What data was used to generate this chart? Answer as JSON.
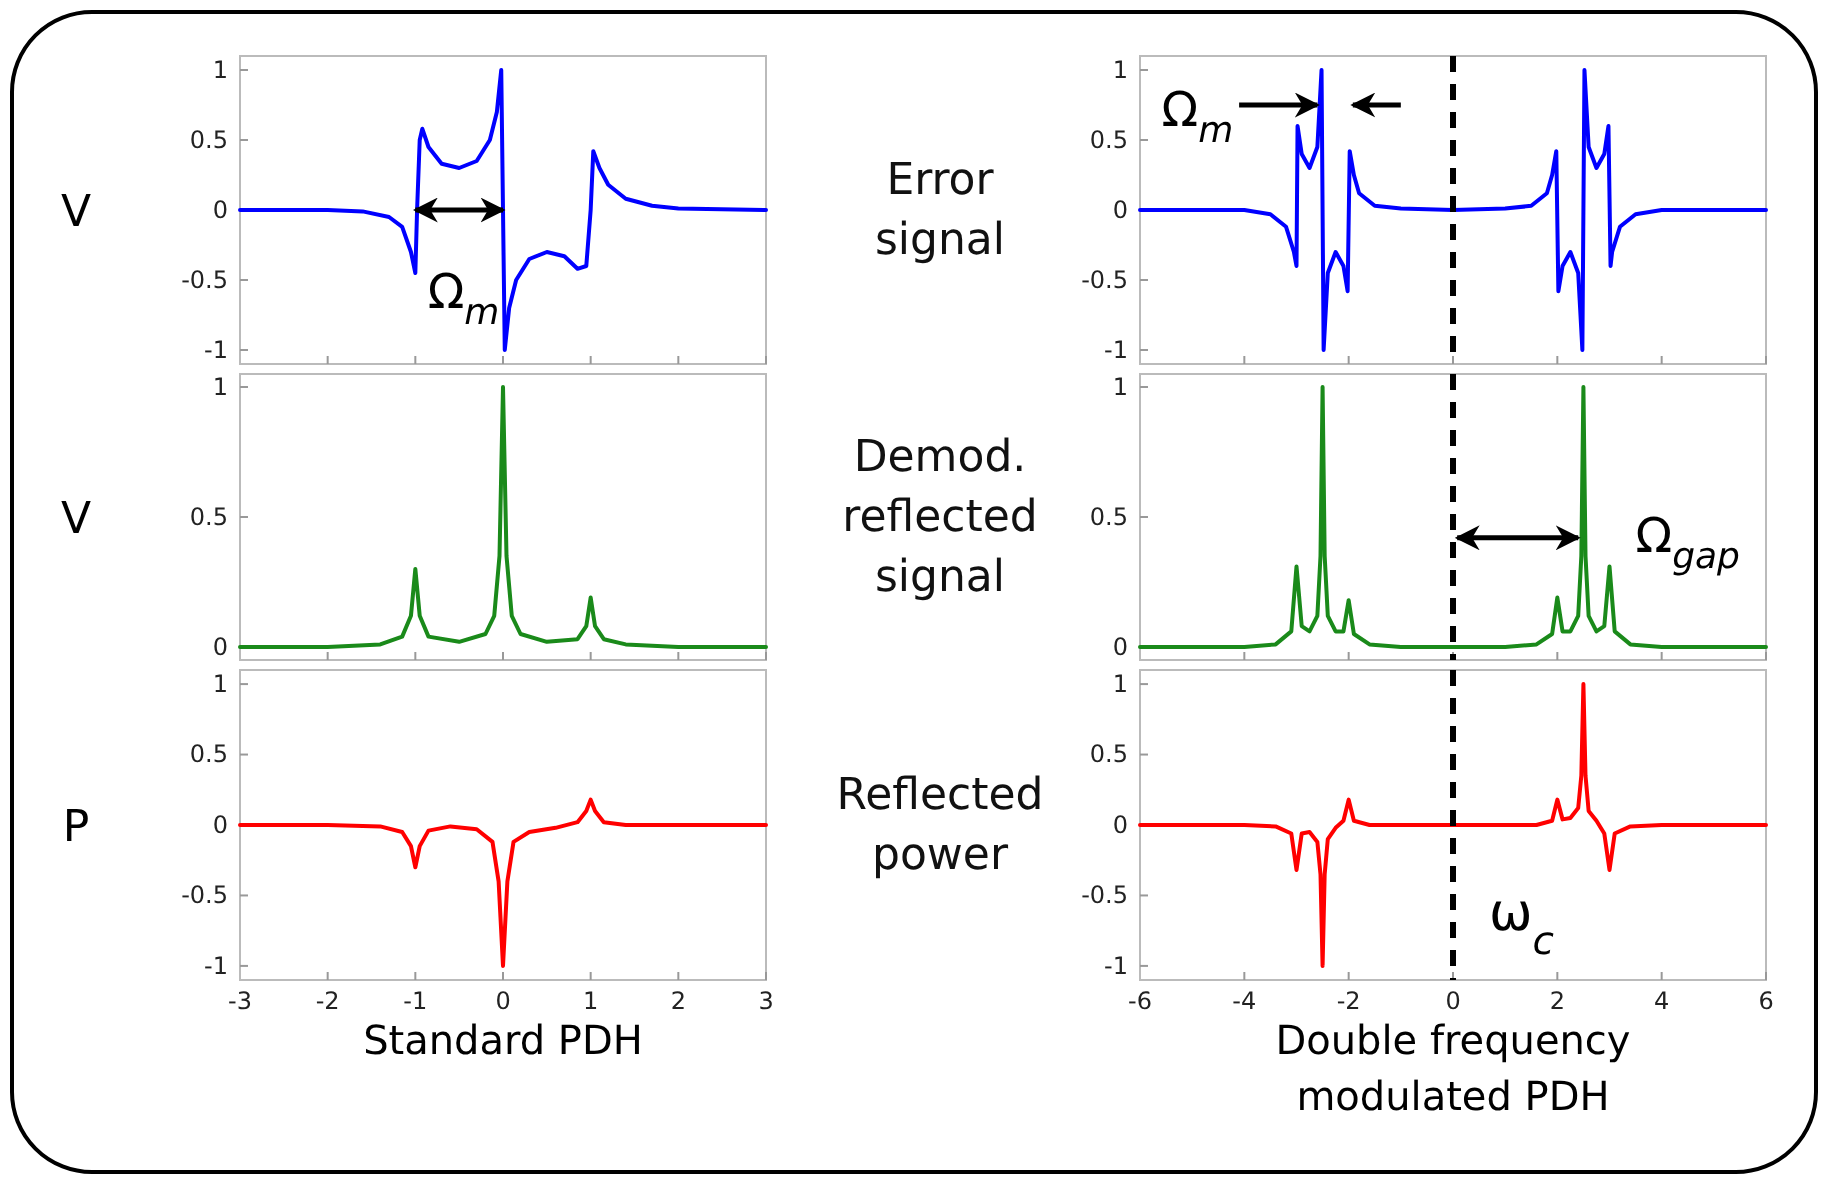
{
  "chart_data": [
    {
      "type": "line",
      "ylabel": "V",
      "annotations": [
        "Error signal",
        "Ω$_{m}$"
      ],
      "xlim": [
        -3,
        3
      ],
      "xticks": [
        -3,
        -2,
        -1,
        0,
        1,
        2,
        3
      ],
      "ylim": [
        -1.1,
        1.1
      ],
      "yticks": [
        -1,
        -0.5,
        0,
        0.5,
        1
      ],
      "tick_labels": "y",
      "series": [
        {
          "color": "#0000ff",
          "x": [
            -3,
            -2,
            -1.6,
            -1.3,
            -1.15,
            -1.05,
            -1.0,
            -0.98,
            -0.95,
            -0.92,
            -0.85,
            -0.7,
            -0.5,
            -0.3,
            -0.15,
            -0.07,
            -0.02,
            0,
            0.02,
            0.07,
            0.15,
            0.3,
            0.5,
            0.7,
            0.85,
            0.95,
            1.0,
            1.03,
            1.1,
            1.2,
            1.4,
            1.7,
            2,
            3
          ],
          "values": [
            0,
            0,
            -0.01,
            -0.05,
            -0.12,
            -0.3,
            -0.45,
            0,
            0.5,
            0.58,
            0.45,
            0.33,
            0.3,
            0.35,
            0.5,
            0.7,
            1.0,
            0,
            -1.0,
            -0.7,
            -0.5,
            -0.35,
            -0.3,
            -0.33,
            -0.42,
            -0.4,
            0,
            0.42,
            0.3,
            0.18,
            0.08,
            0.03,
            0.01,
            0
          ]
        }
      ]
    },
    {
      "type": "line",
      "annotations": [
        "Ω$_{m}$"
      ],
      "xlim": [
        -6,
        6
      ],
      "xticks": [
        -6,
        -4,
        -2,
        0,
        2,
        4,
        6
      ],
      "ylim": [
        -1.1,
        1.1
      ],
      "yticks": [
        -1,
        -0.5,
        0,
        0.5,
        1
      ],
      "tick_labels": "y",
      "ref_lines": [
        {
          "axis": "x",
          "value": 0,
          "color": "#000000",
          "line_style": "dashed"
        }
      ],
      "series": [
        {
          "color": "#0000ff",
          "x": [
            -6,
            -4,
            -3.5,
            -3.2,
            -3.05,
            -3.0,
            -2.98,
            -2.9,
            -2.75,
            -2.6,
            -2.52,
            -2.48,
            -2.4,
            -2.25,
            -2.1,
            -2.02,
            -1.98,
            -1.9,
            -1.8,
            -1.5,
            -1,
            0,
            1,
            1.5,
            1.8,
            1.9,
            1.98,
            2.02,
            2.1,
            2.25,
            2.4,
            2.48,
            2.52,
            2.6,
            2.75,
            2.9,
            2.98,
            3.02,
            3.05,
            3.2,
            3.5,
            4,
            6
          ],
          "values": [
            0,
            0,
            -0.03,
            -0.12,
            -0.3,
            -0.4,
            0.6,
            0.4,
            0.3,
            0.45,
            1.0,
            -1.0,
            -0.45,
            -0.3,
            -0.4,
            -0.58,
            0.42,
            0.25,
            0.12,
            0.03,
            0.01,
            0,
            0.01,
            0.03,
            0.12,
            0.25,
            0.42,
            -0.58,
            -0.4,
            -0.3,
            -0.45,
            -1.0,
            1.0,
            0.45,
            0.3,
            0.4,
            0.6,
            -0.4,
            -0.3,
            -0.12,
            -0.03,
            0,
            0
          ]
        }
      ]
    },
    {
      "type": "line",
      "ylabel": "V",
      "annotations": [
        "Demod. reflected signal"
      ],
      "xlim": [
        -3,
        3
      ],
      "xticks": [
        -3,
        -2,
        -1,
        0,
        1,
        2,
        3
      ],
      "ylim": [
        -0.05,
        1.05
      ],
      "yticks": [
        0,
        0.5,
        1
      ],
      "tick_labels": "y",
      "series": [
        {
          "color": "#1a8a1a",
          "x": [
            -3,
            -2,
            -1.4,
            -1.15,
            -1.05,
            -1,
            -0.95,
            -0.85,
            -0.5,
            -0.2,
            -0.1,
            -0.04,
            0,
            0.04,
            0.1,
            0.2,
            0.5,
            0.85,
            0.95,
            1,
            1.05,
            1.15,
            1.4,
            2,
            3
          ],
          "values": [
            0,
            0,
            0.01,
            0.04,
            0.12,
            0.3,
            0.12,
            0.04,
            0.02,
            0.05,
            0.12,
            0.35,
            1.0,
            0.35,
            0.12,
            0.05,
            0.02,
            0.03,
            0.08,
            0.19,
            0.08,
            0.03,
            0.01,
            0,
            0
          ]
        }
      ]
    },
    {
      "type": "line",
      "annotations": [
        "Ω$_{gap}$"
      ],
      "xlim": [
        -6,
        6
      ],
      "xticks": [
        -6,
        -4,
        -2,
        0,
        2,
        4,
        6
      ],
      "ylim": [
        -0.05,
        1.05
      ],
      "yticks": [
        0,
        0.5,
        1
      ],
      "tick_labels": "y",
      "ref_lines": [
        {
          "axis": "x",
          "value": 0,
          "color": "#000000",
          "line_style": "dashed"
        }
      ],
      "series": [
        {
          "color": "#1a8a1a",
          "x": [
            -6,
            -4,
            -3.4,
            -3.1,
            -3.0,
            -2.9,
            -2.75,
            -2.6,
            -2.54,
            -2.5,
            -2.46,
            -2.4,
            -2.25,
            -2.1,
            -2.0,
            -1.9,
            -1.6,
            -1,
            0,
            1,
            1.6,
            1.9,
            2.0,
            2.1,
            2.25,
            2.4,
            2.46,
            2.5,
            2.54,
            2.6,
            2.75,
            2.9,
            3.0,
            3.1,
            3.4,
            4,
            6
          ],
          "values": [
            0,
            0,
            0.01,
            0.06,
            0.31,
            0.08,
            0.06,
            0.12,
            0.35,
            1.0,
            0.35,
            0.12,
            0.06,
            0.06,
            0.18,
            0.05,
            0.01,
            0,
            0,
            0,
            0.01,
            0.05,
            0.19,
            0.06,
            0.06,
            0.12,
            0.35,
            1.0,
            0.35,
            0.12,
            0.06,
            0.08,
            0.31,
            0.06,
            0.01,
            0,
            0
          ]
        }
      ]
    },
    {
      "type": "line",
      "ylabel": "P",
      "xlabel": "Standard PDH",
      "annotations": [
        "Reflected power"
      ],
      "xlim": [
        -3,
        3
      ],
      "xticks": [
        -3,
        -2,
        -1,
        0,
        1,
        2,
        3
      ],
      "ylim": [
        -1.1,
        1.1
      ],
      "yticks": [
        -1,
        -0.5,
        0,
        0.5,
        1
      ],
      "series": [
        {
          "color": "#ff0000",
          "x": [
            -3,
            -2,
            -1.4,
            -1.15,
            -1.05,
            -1,
            -0.95,
            -0.85,
            -0.6,
            -0.3,
            -0.12,
            -0.05,
            0,
            0.05,
            0.12,
            0.3,
            0.6,
            0.85,
            0.95,
            1,
            1.05,
            1.15,
            1.4,
            3
          ],
          "values": [
            0,
            0,
            -0.01,
            -0.05,
            -0.15,
            -0.3,
            -0.15,
            -0.04,
            -0.01,
            -0.03,
            -0.12,
            -0.4,
            -1.0,
            -0.4,
            -0.12,
            -0.05,
            -0.02,
            0.02,
            0.1,
            0.18,
            0.1,
            0.02,
            0,
            0
          ]
        }
      ]
    },
    {
      "type": "line",
      "xlabel": "Double frequency modulated PDH",
      "xlim": [
        -6,
        6
      ],
      "xticks": [
        -6,
        -4,
        -2,
        0,
        2,
        4,
        6
      ],
      "ylim": [
        -1.1,
        1.1
      ],
      "yticks": [
        -1,
        -0.5,
        0,
        0.5,
        1
      ],
      "ref_lines": [
        {
          "axis": "x",
          "value": 0,
          "color": "#000000",
          "line_style": "dashed",
          "label": "ω$_{c}$"
        }
      ],
      "series": [
        {
          "color": "#ff0000",
          "x": [
            -6,
            -4,
            -3.4,
            -3.1,
            -3.0,
            -2.9,
            -2.75,
            -2.6,
            -2.54,
            -2.5,
            -2.46,
            -2.4,
            -2.25,
            -2.1,
            -2.0,
            -1.9,
            -1.6,
            -1,
            0,
            1,
            1.6,
            1.9,
            2.0,
            2.1,
            2.25,
            2.4,
            2.46,
            2.5,
            2.54,
            2.6,
            2.75,
            2.9,
            3.0,
            3.1,
            3.4,
            4,
            6
          ],
          "values": [
            0,
            0,
            -0.01,
            -0.06,
            -0.32,
            -0.06,
            -0.05,
            -0.12,
            -0.35,
            -1.0,
            -0.35,
            -0.1,
            -0.02,
            0.03,
            0.18,
            0.03,
            0,
            0,
            0,
            0,
            0,
            0.03,
            0.18,
            0.04,
            0.05,
            0.12,
            0.35,
            1.0,
            0.35,
            0.1,
            0.03,
            -0.06,
            -0.32,
            -0.06,
            -0.01,
            0,
            0
          ]
        }
      ]
    }
  ]
}
